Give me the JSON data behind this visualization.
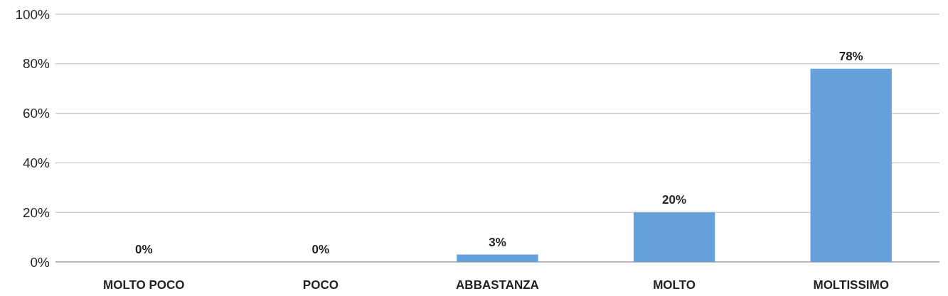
{
  "chart_data": {
    "type": "bar",
    "categories": [
      "MOLTO POCO",
      "POCO",
      "ABBASTANZA",
      "MOLTO",
      "MOLTISSIMO"
    ],
    "values": [
      0,
      0,
      3,
      20,
      78
    ],
    "color": "#65a0da",
    "value_labels": [
      "0%",
      "0%",
      "3%",
      "20%",
      "78%"
    ],
    "ylim": [
      0,
      100
    ],
    "yticks": [
      {
        "value": 0,
        "label": "0%"
      },
      {
        "value": 20,
        "label": "20%"
      },
      {
        "value": 40,
        "label": "40%"
      },
      {
        "value": 60,
        "label": "60%"
      },
      {
        "value": 80,
        "label": "80%"
      },
      {
        "value": 100,
        "label": "100%"
      }
    ],
    "grid": "y"
  }
}
